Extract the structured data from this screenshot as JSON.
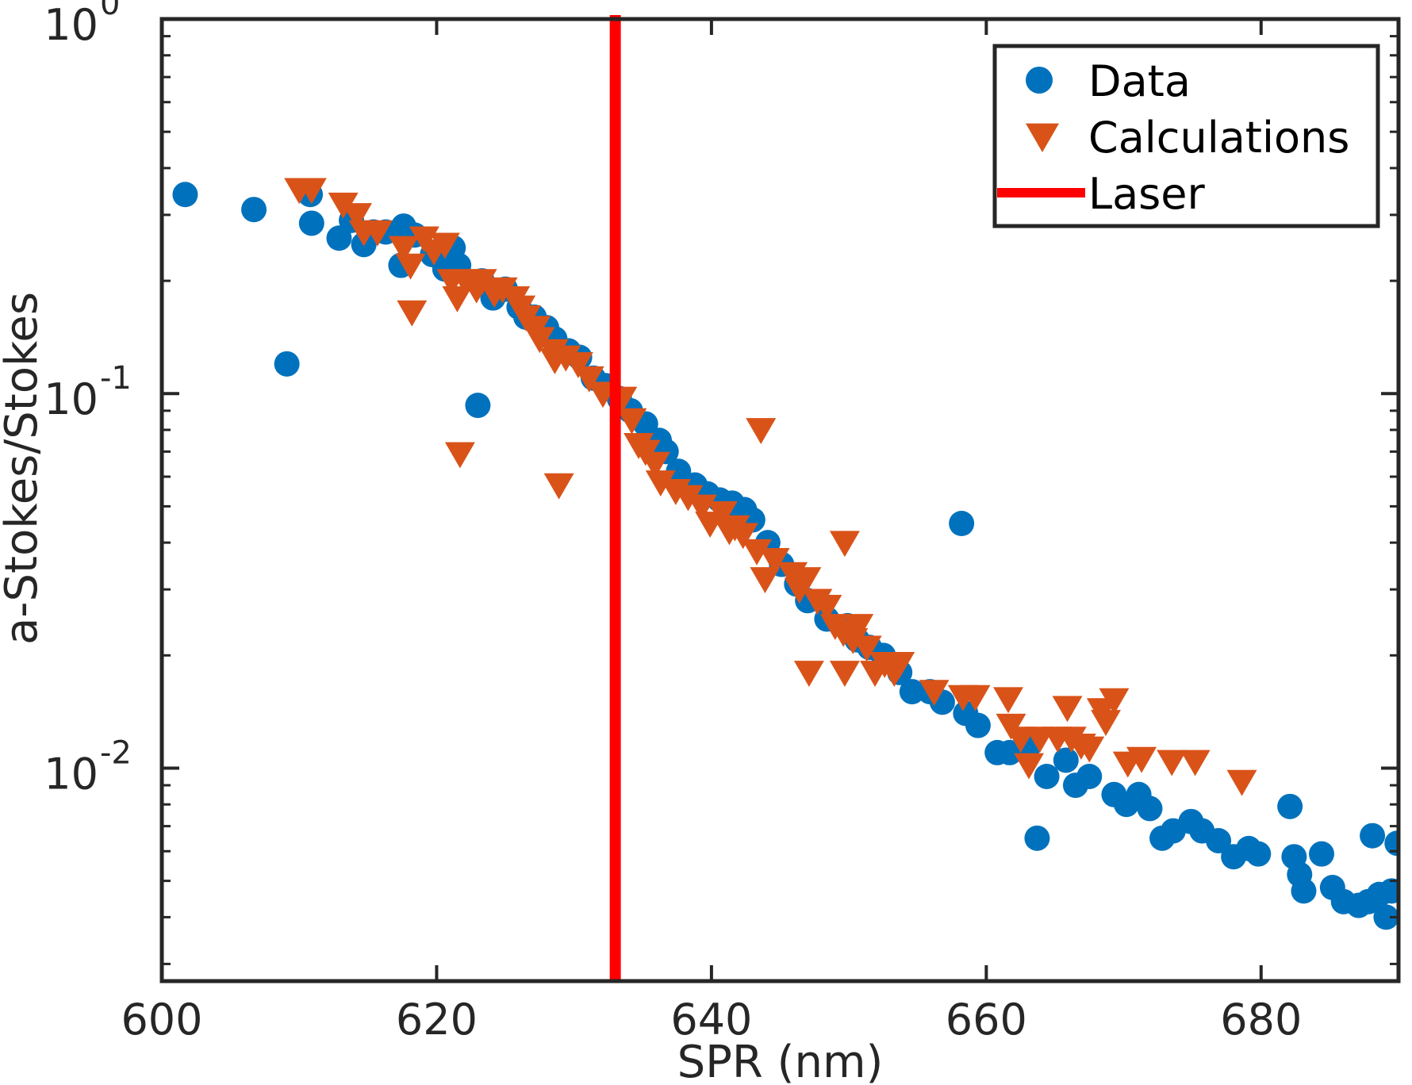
{
  "chart_data": {
    "type": "scatter",
    "xlabel": "SPR (nm)",
    "ylabel": "a-Stokes/Stokes",
    "xlim": [
      600,
      690
    ],
    "ylim": [
      0.0027,
      1
    ],
    "yscale": "log",
    "xticks": [
      600,
      620,
      640,
      660,
      680
    ],
    "yticks": [
      {
        "value": 1,
        "base": "10",
        "exp": "0"
      },
      {
        "value": 0.1,
        "base": "10",
        "exp": "-1"
      },
      {
        "value": 0.01,
        "base": "10",
        "exp": "-2"
      }
    ],
    "grid": false,
    "legend_position": "top-right",
    "colors": {
      "data": "#0072BD",
      "calculations": "#D95319",
      "laser": "#FF0000",
      "axis": "#262626"
    },
    "laser_x": 633,
    "series": [
      {
        "name": "Data",
        "marker": "circle",
        "points": [
          [
            601.7,
            0.34
          ],
          [
            606.7,
            0.31
          ],
          [
            609.1,
            0.12
          ],
          [
            610.8,
            0.34
          ],
          [
            610.9,
            0.285
          ],
          [
            612.9,
            0.26
          ],
          [
            613.8,
            0.29
          ],
          [
            614.7,
            0.25
          ],
          [
            615.4,
            0.27
          ],
          [
            616.3,
            0.27
          ],
          [
            617.4,
            0.22
          ],
          [
            617.6,
            0.28
          ],
          [
            618.4,
            0.265
          ],
          [
            619.7,
            0.235
          ],
          [
            620.6,
            0.215
          ],
          [
            621.2,
            0.245
          ],
          [
            621.6,
            0.22
          ],
          [
            623,
            0.093
          ],
          [
            623.3,
            0.2
          ],
          [
            624.1,
            0.18
          ],
          [
            625,
            0.19
          ],
          [
            626,
            0.17
          ],
          [
            626.5,
            0.16
          ],
          [
            627.1,
            0.16
          ],
          [
            628,
            0.15
          ],
          [
            628.6,
            0.14
          ],
          [
            629.6,
            0.13
          ],
          [
            630.4,
            0.125
          ],
          [
            631.4,
            0.11
          ],
          [
            632.3,
            0.105
          ],
          [
            633.3,
            0.097
          ],
          [
            634.1,
            0.09
          ],
          [
            635.2,
            0.083
          ],
          [
            636.2,
            0.075
          ],
          [
            636.7,
            0.07
          ],
          [
            637.6,
            0.062
          ],
          [
            638.8,
            0.057
          ],
          [
            639.7,
            0.054
          ],
          [
            640.6,
            0.052
          ],
          [
            641.5,
            0.051
          ],
          [
            642.4,
            0.049
          ],
          [
            643,
            0.046
          ],
          [
            644.1,
            0.04
          ],
          [
            645.1,
            0.035
          ],
          [
            646.2,
            0.031
          ],
          [
            647,
            0.028
          ],
          [
            648.4,
            0.025
          ],
          [
            649.9,
            0.024
          ],
          [
            650.6,
            0.022
          ],
          [
            651.5,
            0.021
          ],
          [
            652.5,
            0.02
          ],
          [
            653.7,
            0.018
          ],
          [
            654.6,
            0.016
          ],
          [
            655.9,
            0.016
          ],
          [
            656.8,
            0.015
          ],
          [
            658.2,
            0.045
          ],
          [
            658.5,
            0.014
          ],
          [
            659.4,
            0.013
          ],
          [
            660.8,
            0.011
          ],
          [
            661.7,
            0.011
          ],
          [
            663.1,
            0.0115
          ],
          [
            663.7,
            0.0065
          ],
          [
            664.4,
            0.0095
          ],
          [
            665.8,
            0.0105
          ],
          [
            666.5,
            0.009
          ],
          [
            667.5,
            0.0095
          ],
          [
            669.3,
            0.0085
          ],
          [
            670.2,
            0.008
          ],
          [
            671.1,
            0.0085
          ],
          [
            671.9,
            0.0078
          ],
          [
            672.8,
            0.0065
          ],
          [
            673.6,
            0.0068
          ],
          [
            674.9,
            0.0072
          ],
          [
            675.7,
            0.0068
          ],
          [
            676.9,
            0.0064
          ],
          [
            678,
            0.0058
          ],
          [
            679.1,
            0.0061
          ],
          [
            679.8,
            0.0059
          ],
          [
            682.1,
            0.0079
          ],
          [
            682.4,
            0.0058
          ],
          [
            682.8,
            0.0052
          ],
          [
            683.1,
            0.0047
          ],
          [
            684.4,
            0.0059
          ],
          [
            685.2,
            0.0048
          ],
          [
            686,
            0.0044
          ],
          [
            687.1,
            0.0043
          ],
          [
            687.8,
            0.0044
          ],
          [
            688.1,
            0.0066
          ],
          [
            688.6,
            0.0046
          ],
          [
            689.1,
            0.004
          ],
          [
            689.5,
            0.0047
          ],
          [
            689.9,
            0.0063
          ]
        ]
      },
      {
        "name": "Calculations",
        "marker": "triangle-down",
        "points": [
          [
            610,
            0.35
          ],
          [
            610.9,
            0.35
          ],
          [
            613.2,
            0.32
          ],
          [
            614.2,
            0.3
          ],
          [
            614.7,
            0.27
          ],
          [
            615.7,
            0.27
          ],
          [
            617.6,
            0.245
          ],
          [
            618.1,
            0.22
          ],
          [
            618.2,
            0.165
          ],
          [
            619.1,
            0.26
          ],
          [
            619.8,
            0.24
          ],
          [
            620.6,
            0.25
          ],
          [
            621.1,
            0.2
          ],
          [
            621.5,
            0.18
          ],
          [
            621.7,
            0.069
          ],
          [
            622.1,
            0.2
          ],
          [
            622.9,
            0.19
          ],
          [
            623.3,
            0.2
          ],
          [
            624.2,
            0.185
          ],
          [
            624.8,
            0.19
          ],
          [
            625.7,
            0.18
          ],
          [
            626.1,
            0.17
          ],
          [
            626.5,
            0.16
          ],
          [
            627.2,
            0.15
          ],
          [
            627.5,
            0.14
          ],
          [
            628.5,
            0.13
          ],
          [
            628.6,
            0.123
          ],
          [
            628.9,
            0.057
          ],
          [
            629.4,
            0.125
          ],
          [
            630.3,
            0.12
          ],
          [
            631.1,
            0.11
          ],
          [
            632.1,
            0.1
          ],
          [
            633.5,
            0.097
          ],
          [
            634.2,
            0.085
          ],
          [
            634.7,
            0.073
          ],
          [
            635.2,
            0.07
          ],
          [
            635.9,
            0.065
          ],
          [
            636.3,
            0.058
          ],
          [
            637.4,
            0.055
          ],
          [
            638.3,
            0.053
          ],
          [
            639.3,
            0.05
          ],
          [
            639.9,
            0.045
          ],
          [
            640.8,
            0.048
          ],
          [
            641.3,
            0.043
          ],
          [
            641.7,
            0.044
          ],
          [
            642.3,
            0.042
          ],
          [
            643.3,
            0.038
          ],
          [
            643.6,
            0.08
          ],
          [
            643.9,
            0.032
          ],
          [
            644.6,
            0.036
          ],
          [
            645.9,
            0.033
          ],
          [
            646.4,
            0.03
          ],
          [
            646.9,
            0.032
          ],
          [
            647.1,
            0.018
          ],
          [
            647.7,
            0.028
          ],
          [
            648.4,
            0.027
          ],
          [
            649,
            0.024
          ],
          [
            649.6,
            0.023
          ],
          [
            649.7,
            0.018
          ],
          [
            649.7,
            0.04
          ],
          [
            650.3,
            0.022
          ],
          [
            650.7,
            0.024
          ],
          [
            651.3,
            0.021
          ],
          [
            651.9,
            0.018
          ],
          [
            652.6,
            0.019
          ],
          [
            653.3,
            0.018
          ],
          [
            653.7,
            0.019
          ],
          [
            656.2,
            0.016
          ],
          [
            658.3,
            0.0155
          ],
          [
            659.2,
            0.0155
          ],
          [
            661.6,
            0.0153
          ],
          [
            661.8,
            0.013
          ],
          [
            662.5,
            0.012
          ],
          [
            663.1,
            0.0102
          ],
          [
            663.9,
            0.012
          ],
          [
            665.2,
            0.012
          ],
          [
            665.9,
            0.0145
          ],
          [
            666.2,
            0.012
          ],
          [
            666.9,
            0.0115
          ],
          [
            667.5,
            0.0113
          ],
          [
            668.4,
            0.0143
          ],
          [
            668.7,
            0.0133
          ],
          [
            669.3,
            0.0152
          ],
          [
            670.3,
            0.0103
          ],
          [
            671.3,
            0.0106
          ],
          [
            673.5,
            0.0104
          ],
          [
            675.2,
            0.0104
          ],
          [
            678.6,
            0.0092
          ]
        ]
      }
    ]
  }
}
